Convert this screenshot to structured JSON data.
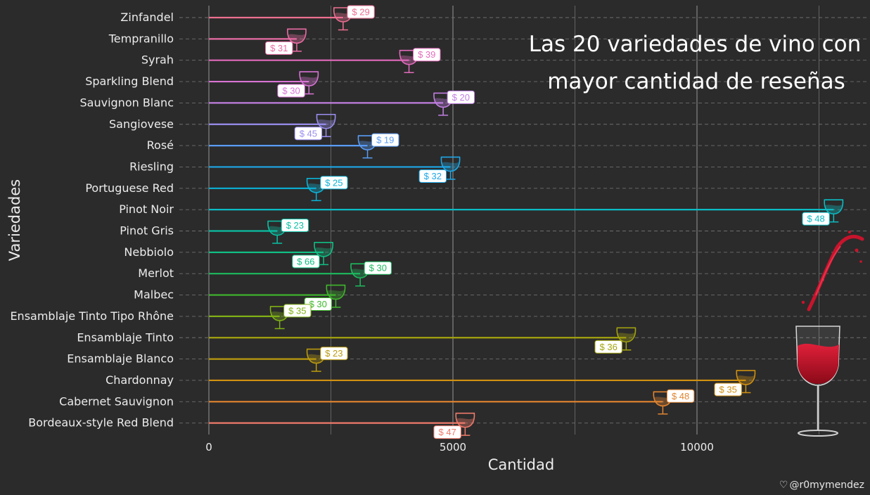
{
  "chart_data": {
    "type": "lollipop",
    "title_lines": [
      "Las 20 variedades de vino con",
      "mayor cantidad de reseñas"
    ],
    "xlabel": "Cantidad",
    "ylabel": "Variedades",
    "xlim": [
      0,
      13000
    ],
    "x_ticks": [
      0,
      5000,
      10000
    ],
    "x_tick_labels": [
      "0",
      "5000",
      "10000"
    ],
    "grid": true,
    "price_prefix": "$",
    "items": [
      {
        "name": "Zinfandel",
        "count": 2750,
        "price": 29,
        "color": "#ee6f91"
      },
      {
        "name": "Tempranillo",
        "count": 1800,
        "price": 31,
        "color": "#ea6ca4"
      },
      {
        "name": "Syrah",
        "count": 4100,
        "price": 39,
        "color": "#e36bbd"
      },
      {
        "name": "Sparkling Blend",
        "count": 2050,
        "price": 30,
        "color": "#d873d4"
      },
      {
        "name": "Sauvignon Blanc",
        "count": 4800,
        "price": 20,
        "color": "#c17fe2"
      },
      {
        "name": "Sangiovese",
        "count": 2400,
        "price": 45,
        "color": "#9a8ef0"
      },
      {
        "name": "Rosé",
        "count": 3250,
        "price": 19,
        "color": "#5a9cf5"
      },
      {
        "name": "Riesling",
        "count": 4950,
        "price": 32,
        "color": "#1ea8e8"
      },
      {
        "name": "Portuguese Red",
        "count": 2200,
        "price": 25,
        "color": "#0bb2d6"
      },
      {
        "name": "Pinot Noir",
        "count": 12800,
        "price": 48,
        "color": "#0bbcc3"
      },
      {
        "name": "Pinot Gris",
        "count": 1400,
        "price": 23,
        "color": "#0bbfa3"
      },
      {
        "name": "Nebbiolo",
        "count": 2350,
        "price": 66,
        "color": "#10be84"
      },
      {
        "name": "Merlot",
        "count": 3100,
        "price": 30,
        "color": "#1dbb5e"
      },
      {
        "name": "Malbec",
        "count": 2600,
        "price": 30,
        "color": "#3fb82c"
      },
      {
        "name": "Ensamblaje Tinto Tipo Rhône",
        "count": 1450,
        "price": 35,
        "color": "#7fb016"
      },
      {
        "name": "Ensamblaje Tinto",
        "count": 8550,
        "price": 36,
        "color": "#a4a40e"
      },
      {
        "name": "Ensamblaje Blanco",
        "count": 2200,
        "price": 23,
        "color": "#bb9a0e"
      },
      {
        "name": "Chardonnay",
        "count": 11000,
        "price": 35,
        "color": "#d0900f"
      },
      {
        "name": "Cabernet Sauvignon",
        "count": 9300,
        "price": 48,
        "color": "#e28530"
      },
      {
        "name": "Bordeaux-style Red Blend",
        "count": 5250,
        "price": 47,
        "color": "#f07a6a"
      }
    ]
  },
  "credit": {
    "icon": "heart-outline-icon",
    "handle": "@r0mymendez"
  },
  "decoration": {
    "icon": "red-wine-splash-glass-icon"
  }
}
